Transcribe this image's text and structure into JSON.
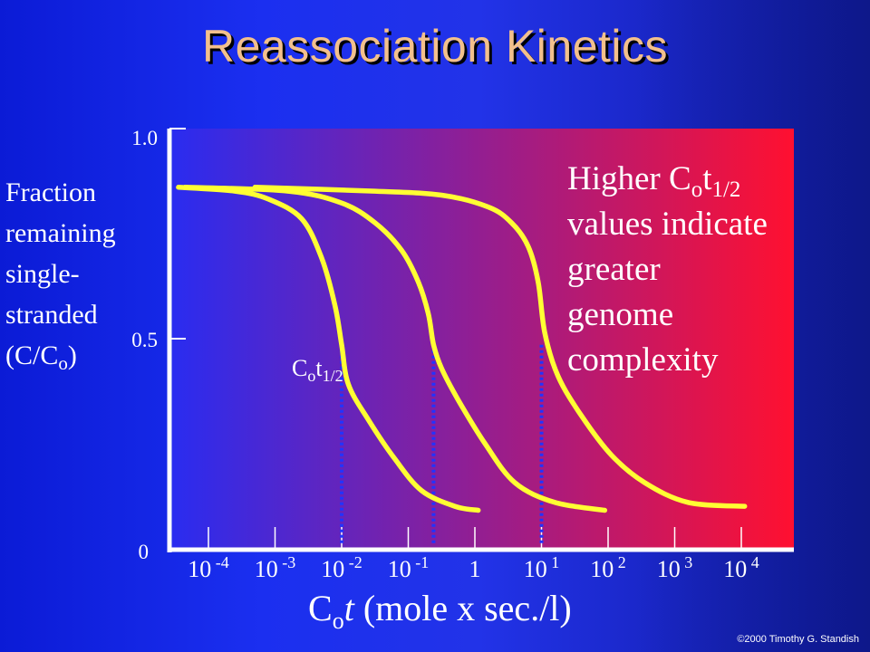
{
  "title": "Reassociation Kinetics",
  "y_axis_label": {
    "lines": [
      "Fraction",
      "remaining",
      "single-",
      "stranded"
    ],
    "last_line_prefix": "(C/C",
    "last_line_sub": "o",
    "last_line_suffix": ")"
  },
  "x_axis_label": {
    "main": "C",
    "sub": "o",
    "italic": "t",
    "suffix": " (mole x sec./l)"
  },
  "cot_half_label": {
    "main": "C",
    "sub1": "o",
    "t": "t",
    "sub2": "1/2"
  },
  "note": {
    "line1_main": "Higher C",
    "line1_sub1": "o",
    "line1_t": "t",
    "line1_sub2": "1/2",
    "line2": "values indicate",
    "line3": "greater",
    "line4": "genome",
    "line5": "complexity"
  },
  "copyright": "©2000 Timothy G. Standish",
  "colors": {
    "curve": "#ffff33",
    "dotted_line": "#2233ff",
    "gradient_start": "#2a2cf0",
    "gradient_end": "#ff1030",
    "title": "#f3c08c"
  },
  "chart_data": {
    "type": "line",
    "x_scale": "log10",
    "xlim": [
      -4.45,
      4.9
    ],
    "ylim": [
      0,
      1
    ],
    "y_ticks": [
      {
        "value": 0,
        "label": "0"
      },
      {
        "value": 0.5,
        "label": "0.5"
      },
      {
        "value": 1.0,
        "label": "1.0"
      }
    ],
    "x_ticks": [
      {
        "exp": -4,
        "base": "10",
        "sup": "-4"
      },
      {
        "exp": -3,
        "base": "10",
        "sup": "-3"
      },
      {
        "exp": -2,
        "base": "10",
        "sup": "-2"
      },
      {
        "exp": -1,
        "base": "10",
        "sup": "-1"
      },
      {
        "exp": 0,
        "base": "1",
        "sup": ""
      },
      {
        "exp": 1,
        "base": "10",
        "sup": "1"
      },
      {
        "exp": 2,
        "base": "10",
        "sup": "2"
      },
      {
        "exp": 3,
        "base": "10",
        "sup": "3"
      },
      {
        "exp": 4,
        "base": "10",
        "sup": "4"
      }
    ],
    "series": [
      {
        "x": [
          -4.45,
          -3.6,
          -3.1,
          -2.6,
          -2.3,
          -2.1,
          -2.0,
          -1.9,
          -1.6,
          -1.2,
          -0.8,
          -0.3,
          0.05
        ],
        "y": [
          0.92,
          0.91,
          0.89,
          0.84,
          0.74,
          0.62,
          0.52,
          0.42,
          0.33,
          0.23,
          0.15,
          0.11,
          0.1
        ]
      },
      {
        "x": [
          -4.35,
          -2.8,
          -2.0,
          -1.5,
          -1.1,
          -0.85,
          -0.7,
          -0.62,
          -0.5,
          -0.25,
          0.15,
          0.6,
          1.2,
          1.95
        ],
        "y": [
          0.92,
          0.91,
          0.88,
          0.83,
          0.76,
          0.68,
          0.6,
          0.52,
          0.46,
          0.38,
          0.27,
          0.17,
          0.12,
          0.1
        ]
      },
      {
        "x": [
          -3.3,
          -1.5,
          -0.5,
          0.2,
          0.55,
          0.8,
          0.95,
          1.05,
          1.25,
          1.6,
          2.05,
          2.55,
          3.2,
          4.05
        ],
        "y": [
          0.92,
          0.91,
          0.9,
          0.87,
          0.83,
          0.77,
          0.68,
          0.55,
          0.44,
          0.34,
          0.24,
          0.17,
          0.12,
          0.11
        ]
      }
    ],
    "dotted_lines_x": [
      -2.0,
      -0.62,
      1.0
    ],
    "dotted_line_y": 0.52
  }
}
